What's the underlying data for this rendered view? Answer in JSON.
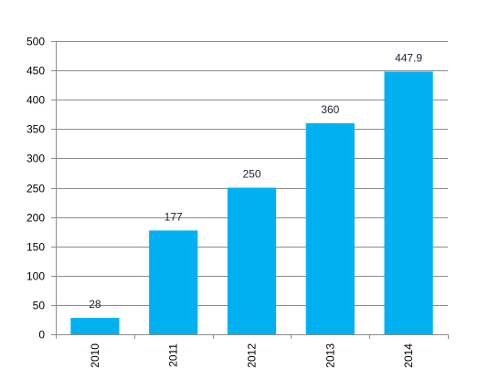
{
  "chart_data": {
    "type": "bar",
    "categories": [
      "2010",
      "2011",
      "2012",
      "2013",
      "2014"
    ],
    "values": [
      28,
      177,
      250,
      360,
      447.9
    ],
    "data_labels": [
      "28",
      "177",
      "250",
      "360",
      "447.9"
    ],
    "ylim": [
      0,
      500
    ],
    "yticks": [
      0,
      50,
      100,
      150,
      200,
      250,
      300,
      350,
      400,
      450,
      500
    ],
    "grid": true,
    "legend": "none",
    "bar_color": "#00b0f0",
    "title": "",
    "xlabel": "",
    "ylabel": ""
  }
}
